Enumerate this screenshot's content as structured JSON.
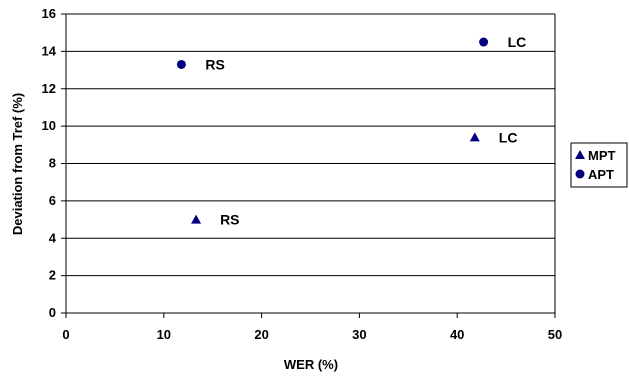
{
  "chart_data": {
    "type": "scatter",
    "xlabel": "WER (%)",
    "ylabel": "Deviation from Tref (%)",
    "xlim": [
      0,
      50
    ],
    "ylim": [
      0,
      16
    ],
    "x_ticks": [
      0,
      10,
      20,
      30,
      40,
      50
    ],
    "y_ticks": [
      0,
      2,
      4,
      6,
      8,
      10,
      12,
      14,
      16
    ],
    "grid": "horizontal",
    "legend_position": "right",
    "series": [
      {
        "name": "MPT",
        "marker": "triangle",
        "color": "#000080",
        "points": [
          {
            "x": 13.3,
            "y": 5.0,
            "label": "RS"
          },
          {
            "x": 41.8,
            "y": 9.4,
            "label": "LC"
          }
        ]
      },
      {
        "name": "APT",
        "marker": "circle",
        "color": "#000080",
        "points": [
          {
            "x": 11.8,
            "y": 13.3,
            "label": "RS"
          },
          {
            "x": 42.7,
            "y": 14.5,
            "label": "LC"
          }
        ]
      }
    ]
  }
}
